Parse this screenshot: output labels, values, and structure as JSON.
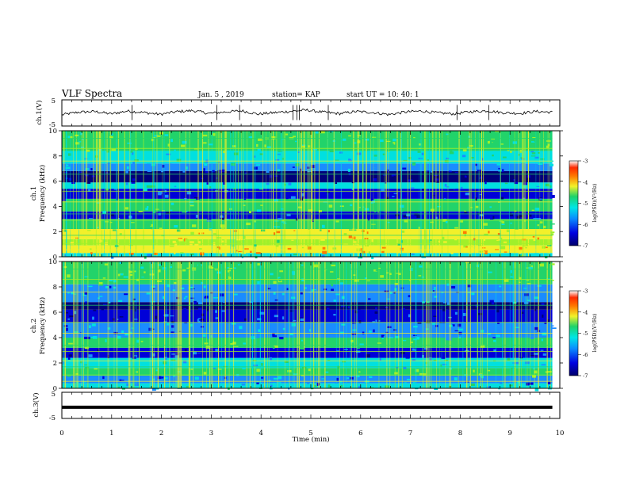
{
  "header": {
    "title": "VLF Spectra",
    "date": "Jan. 5 , 2019",
    "station": "station= KAP",
    "start": "start  UT =   10: 40: 1"
  },
  "colors": {
    "band_colors": [
      "#00007a",
      "#0000d8",
      "#1a8cff",
      "#00e0e0",
      "#22d36a",
      "#a0f02a",
      "#f2f02a",
      "#ff7a00",
      "#ff2a00"
    ],
    "trace": "#000000"
  },
  "chart_data": [
    {
      "type": "line",
      "id": "ch1-waveform",
      "ylabel": "ch.1(V)",
      "ylim": [
        -5,
        5
      ],
      "yticks": [
        "5",
        "-5"
      ],
      "x_range_min": [
        0,
        10
      ],
      "series": [
        {
          "values": [
            -0.8,
            0.3,
            0.6,
            -0.4,
            0.8,
            0.2,
            -0.6,
            0.5,
            1.0,
            -0.2,
            0.4,
            0.9,
            -0.5,
            0.1,
            0.7,
            1.2,
            0.3,
            -0.3,
            0.6,
            0.2,
            -0.7,
            0.4,
            0.8,
            0.0,
            -0.4,
            0.5,
            0.9,
            0.1,
            -0.2,
            0.6,
            0.3
          ]
        }
      ]
    },
    {
      "type": "heatmap",
      "id": "ch1-spectrogram",
      "ylabel": "ch.1\nFrequency (kHz)",
      "ylim": [
        0,
        10
      ],
      "yticks": [
        "0",
        "2",
        "4",
        "6",
        "8",
        "10"
      ],
      "xlim": [
        0,
        10
      ],
      "colorbar": {
        "label": "log(PSD)(V²/Hz)",
        "range": [
          -7,
          -3
        ],
        "ticks": [
          "-3",
          "-4",
          "-5",
          "-6",
          "-7"
        ]
      },
      "bands": [
        {
          "f0": 0.0,
          "f1": 0.3,
          "level": 3
        },
        {
          "f0": 0.3,
          "f1": 0.9,
          "level": 6
        },
        {
          "f0": 0.9,
          "f1": 1.4,
          "level": 5
        },
        {
          "f0": 1.4,
          "f1": 2.2,
          "level": 6
        },
        {
          "f0": 2.2,
          "f1": 3.0,
          "level": 4
        },
        {
          "f0": 3.0,
          "f1": 3.6,
          "level": 1
        },
        {
          "f0": 3.6,
          "f1": 4.6,
          "level": 4
        },
        {
          "f0": 4.6,
          "f1": 5.4,
          "level": 1
        },
        {
          "f0": 5.4,
          "f1": 5.9,
          "level": 3
        },
        {
          "f0": 5.9,
          "f1": 6.8,
          "level": 0
        },
        {
          "f0": 6.8,
          "f1": 7.4,
          "level": 2
        },
        {
          "f0": 7.4,
          "f1": 8.4,
          "level": 3
        },
        {
          "f0": 8.4,
          "f1": 10.0,
          "level": 4
        }
      ]
    },
    {
      "type": "heatmap",
      "id": "ch2-spectrogram",
      "ylabel": "ch.2\nFrequency (kHz)",
      "ylim": [
        0,
        10
      ],
      "yticks": [
        "0",
        "2",
        "4",
        "6",
        "8",
        "10"
      ],
      "xlim": [
        0,
        10
      ],
      "colorbar": {
        "label": "log(PSD)(V²/Hz)",
        "range": [
          -7,
          -3
        ],
        "ticks": [
          "-3",
          "-4",
          "-5",
          "-6",
          "-7"
        ]
      },
      "bands": [
        {
          "f0": 0.0,
          "f1": 0.4,
          "level": 3
        },
        {
          "f0": 0.4,
          "f1": 1.0,
          "level": 2
        },
        {
          "f0": 1.0,
          "f1": 1.6,
          "level": 4
        },
        {
          "f0": 1.6,
          "f1": 2.4,
          "level": 3
        },
        {
          "f0": 2.4,
          "f1": 3.2,
          "level": 1
        },
        {
          "f0": 3.2,
          "f1": 4.0,
          "level": 4
        },
        {
          "f0": 4.0,
          "f1": 5.2,
          "level": 2
        },
        {
          "f0": 5.2,
          "f1": 6.2,
          "level": 1
        },
        {
          "f0": 6.2,
          "f1": 6.8,
          "level": 0
        },
        {
          "f0": 6.8,
          "f1": 8.2,
          "level": 2
        },
        {
          "f0": 8.2,
          "f1": 10.0,
          "level": 4
        }
      ]
    },
    {
      "type": "line",
      "id": "ch3-waveform",
      "ylabel": "ch.3(V)",
      "ylim": [
        -5,
        5
      ],
      "yticks": [
        "5",
        "-5"
      ],
      "xlabel": "Time (min)",
      "xlim": [
        0,
        10
      ],
      "xticks": [
        "0",
        "1",
        "2",
        "3",
        "4",
        "5",
        "6",
        "7",
        "8",
        "9",
        "10"
      ],
      "series": [
        {
          "x": [
            0,
            9.85
          ],
          "values": [
            -0.8,
            -0.8
          ]
        }
      ]
    }
  ]
}
